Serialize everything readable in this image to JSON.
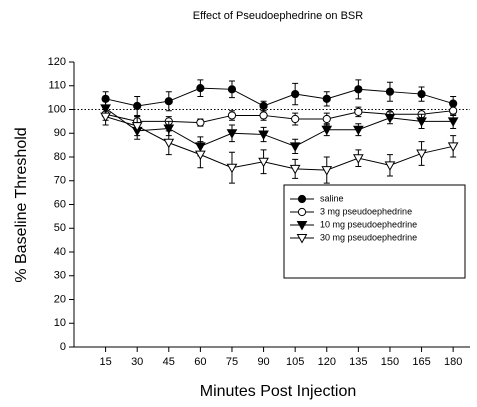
{
  "chart_data": {
    "type": "line",
    "title": "Effect of Pseudoephedrine on BSR",
    "xlabel": "Minutes Post Injection",
    "ylabel": "% Baseline Threshold",
    "x": [
      15,
      30,
      45,
      60,
      75,
      90,
      105,
      120,
      135,
      150,
      165,
      180
    ],
    "xlim": [
      0,
      188
    ],
    "xticks": [
      15,
      30,
      45,
      60,
      75,
      90,
      105,
      120,
      135,
      150,
      165,
      180
    ],
    "ylim": [
      0,
      120
    ],
    "yticks": [
      0,
      10,
      20,
      30,
      40,
      50,
      60,
      70,
      80,
      90,
      100,
      110,
      120
    ],
    "reference_line": 100,
    "legend_position": "right",
    "series": [
      {
        "name": "saline",
        "color": "#000000",
        "marker": "circle",
        "filled": true,
        "values": [
          104.5,
          101.5,
          103.5,
          109,
          108.5,
          101.5,
          106.5,
          104.5,
          108.5,
          107.5,
          106.5,
          102.5
        ],
        "errors": [
          3,
          4,
          4,
          3.5,
          3.5,
          2,
          4.5,
          3,
          4,
          4,
          3,
          3
        ]
      },
      {
        "name": "3 mg pseudoephedrine",
        "color": "#000000",
        "marker": "circle",
        "filled": false,
        "values": [
          98,
          95,
          95,
          94.5,
          97.5,
          97.5,
          96,
          96,
          99,
          98,
          98,
          99.5
        ],
        "errors": [
          2.5,
          2,
          2,
          1.5,
          2,
          2,
          2.5,
          2.5,
          2,
          2,
          2,
          2
        ]
      },
      {
        "name": "10 mg pseudoephedrine",
        "color": "#000000",
        "marker": "triangle-down",
        "filled": true,
        "values": [
          100.5,
          91,
          92,
          84.5,
          90,
          89.5,
          84.5,
          91.5,
          91.5,
          96.5,
          95,
          95
        ],
        "errors": [
          3,
          3.5,
          3,
          4,
          3.5,
          3,
          3,
          2.5,
          2.5,
          2.5,
          3,
          3
        ]
      },
      {
        "name": "30 mg pseudoephedrine",
        "color": "#000000",
        "marker": "triangle-down",
        "filled": false,
        "values": [
          97,
          93,
          86,
          81,
          75.5,
          78,
          75,
          74.5,
          79.5,
          76.5,
          81.5,
          84.5
        ],
        "errors": [
          3.5,
          4,
          5,
          5.5,
          6.5,
          5,
          4,
          5.5,
          3.5,
          4.5,
          5,
          4.5
        ]
      }
    ]
  }
}
